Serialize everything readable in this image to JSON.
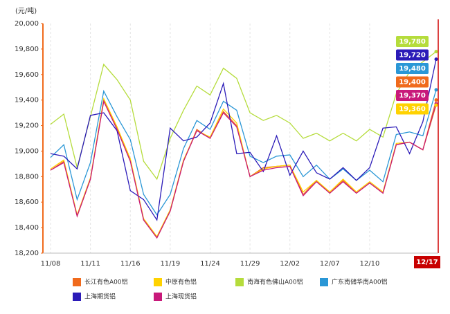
{
  "chart_data": {
    "type": "line",
    "y_axis_label": "(元/吨)",
    "categories": [
      "11/08",
      null,
      null,
      "11/11",
      null,
      null,
      "11/16",
      null,
      null,
      "11/19",
      null,
      null,
      "11/24",
      null,
      null,
      "11/29",
      null,
      null,
      "12/02",
      null,
      null,
      "12/07",
      null,
      null,
      "12/10",
      null,
      null,
      null,
      null,
      "12/17"
    ],
    "ylim": [
      18200,
      20000
    ],
    "yticks": [
      {
        "value": 18200,
        "label": "18,200"
      },
      {
        "value": 18400,
        "label": "18,400"
      },
      {
        "value": 18600,
        "label": "18,600"
      },
      {
        "value": 18800,
        "label": "18,800"
      },
      {
        "value": 19000,
        "label": "19,000"
      },
      {
        "value": 19200,
        "label": "19,200"
      },
      {
        "value": 19400,
        "label": "19,400"
      },
      {
        "value": 19600,
        "label": "19,600"
      },
      {
        "value": 19800,
        "label": "19,800"
      },
      {
        "value": 20000,
        "label": "20,000"
      }
    ],
    "grid": true,
    "series": [
      {
        "name": "长江有色A00铝",
        "color": "#f06a1c",
        "values": [
          18850,
          18920,
          18490,
          18780,
          19400,
          19180,
          18930,
          18460,
          18320,
          18530,
          18920,
          19170,
          19100,
          19310,
          19200,
          18800,
          18870,
          18880,
          18890,
          18660,
          18770,
          18670,
          18770,
          18670,
          18750,
          18670,
          19050,
          19070,
          19010,
          19400
        ],
        "value_labels": [
          null,
          null,
          null,
          null,
          null,
          null,
          null,
          null,
          null,
          null,
          null,
          null,
          null,
          null,
          null,
          null,
          null,
          null,
          null,
          null,
          null,
          null,
          null,
          null,
          null,
          null,
          null,
          null,
          null,
          "19,400"
        ]
      },
      {
        "name": "中原有色铝",
        "color": "#ffd200",
        "values": [
          18860,
          18930,
          18500,
          18790,
          19410,
          19190,
          18940,
          18470,
          18330,
          18540,
          18930,
          19160,
          19110,
          19330,
          19220,
          18800,
          18860,
          18880,
          18890,
          18680,
          18770,
          18680,
          18780,
          18680,
          18760,
          18680,
          19060,
          19070,
          19010,
          19360
        ],
        "value_labels": [
          null,
          null,
          null,
          null,
          null,
          null,
          null,
          null,
          null,
          null,
          null,
          null,
          null,
          null,
          null,
          null,
          null,
          null,
          null,
          null,
          null,
          null,
          null,
          null,
          null,
          null,
          null,
          null,
          null,
          "19,360"
        ]
      },
      {
        "name": "南海有色佛山A00铝",
        "color": "#b5dc3c",
        "values": [
          19210,
          19290,
          18870,
          19270,
          19680,
          19560,
          19400,
          18920,
          18780,
          19100,
          19320,
          19510,
          19440,
          19650,
          19570,
          19300,
          19240,
          19280,
          19220,
          19100,
          19140,
          19080,
          19140,
          19080,
          19170,
          19110,
          19450,
          19620,
          19700,
          19780
        ],
        "value_labels": [
          null,
          null,
          null,
          null,
          null,
          null,
          null,
          null,
          null,
          null,
          null,
          null,
          null,
          null,
          null,
          null,
          null,
          null,
          null,
          null,
          null,
          null,
          null,
          null,
          null,
          null,
          null,
          null,
          null,
          "19,780"
        ]
      },
      {
        "name": "广东南储华南A00铝",
        "color": "#2a97d6",
        "values": [
          18950,
          19050,
          18620,
          18910,
          19470,
          19270,
          19090,
          18660,
          18500,
          18660,
          19020,
          19240,
          19170,
          19390,
          19320,
          18960,
          18910,
          18960,
          18970,
          18800,
          18890,
          18780,
          18860,
          18770,
          18850,
          18760,
          19130,
          19150,
          19120,
          19480
        ],
        "value_labels": [
          null,
          null,
          null,
          null,
          null,
          null,
          null,
          null,
          null,
          null,
          null,
          null,
          null,
          null,
          null,
          null,
          null,
          null,
          null,
          null,
          null,
          null,
          null,
          null,
          null,
          null,
          null,
          null,
          null,
          "19,480"
        ]
      },
      {
        "name": "上海期货铝",
        "color": "#2b1bb8",
        "values": [
          18980,
          18960,
          18860,
          19280,
          19300,
          19160,
          18690,
          18620,
          18460,
          19180,
          19080,
          19110,
          19220,
          19530,
          18980,
          18990,
          18840,
          19120,
          18810,
          19000,
          18830,
          18780,
          18870,
          18770,
          18870,
          19180,
          19190,
          18980,
          19230,
          19720
        ],
        "value_labels": [
          null,
          null,
          null,
          null,
          null,
          null,
          null,
          null,
          null,
          null,
          null,
          null,
          null,
          null,
          null,
          null,
          null,
          null,
          null,
          null,
          null,
          null,
          null,
          null,
          null,
          null,
          null,
          null,
          null,
          "19,720"
        ]
      },
      {
        "name": "上海现货铝",
        "color": "#c8197a",
        "values": [
          18850,
          18910,
          18490,
          18780,
          19390,
          19170,
          18920,
          18460,
          18320,
          18530,
          18920,
          19160,
          19100,
          19300,
          19190,
          18800,
          18850,
          18870,
          18880,
          18650,
          18760,
          18670,
          18760,
          18670,
          18750,
          18670,
          19050,
          19070,
          19010,
          19370
        ],
        "value_labels": [
          null,
          null,
          null,
          null,
          null,
          null,
          null,
          null,
          null,
          null,
          null,
          null,
          null,
          null,
          null,
          null,
          null,
          null,
          null,
          null,
          null,
          null,
          null,
          null,
          null,
          null,
          null,
          null,
          null,
          "19,370"
        ]
      }
    ]
  }
}
